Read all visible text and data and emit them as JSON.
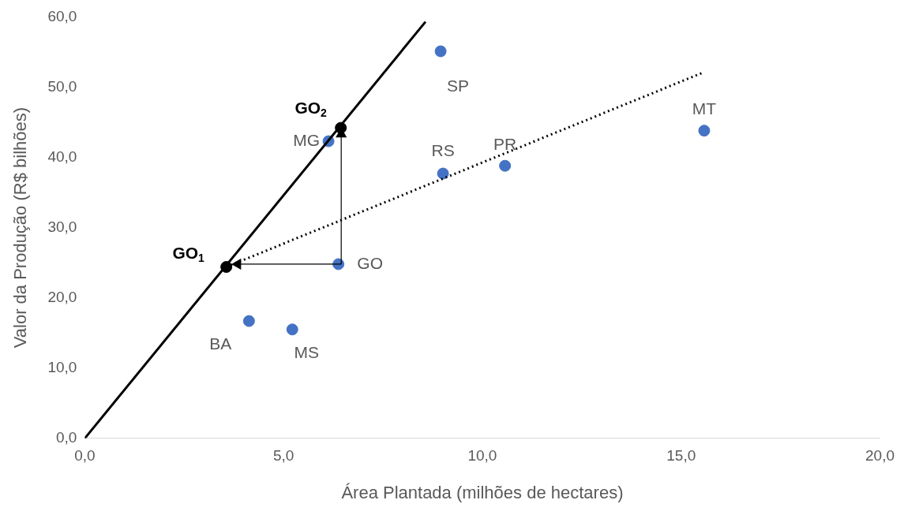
{
  "chart_data": {
    "type": "scatter",
    "xlabel": "Área Plantada (milhões de hectares)",
    "ylabel": "Valor da Produção (R$ bilhões)",
    "xlim": [
      0,
      20
    ],
    "xticks": [
      {
        "value": 0,
        "label": "0,0"
      },
      {
        "value": 5,
        "label": "5,0"
      },
      {
        "value": 10,
        "label": "10,0"
      },
      {
        "value": 15,
        "label": "15,0"
      },
      {
        "value": 20,
        "label": "20,0"
      }
    ],
    "ylim": [
      0,
      60
    ],
    "yticks": [
      {
        "value": 0,
        "label": "0,0"
      },
      {
        "value": 10,
        "label": "10,0"
      },
      {
        "value": 20,
        "label": "20,0"
      },
      {
        "value": 30,
        "label": "30,0"
      },
      {
        "value": 40,
        "label": "40,0"
      },
      {
        "value": 50,
        "label": "50,0"
      },
      {
        "value": 60,
        "label": "60,0"
      }
    ],
    "grid": false,
    "legend": false,
    "marker": "circle",
    "series": [
      {
        "type": "line",
        "color": "#000000",
        "line_style": "solid",
        "marker": "none",
        "x": [
          0,
          8.57
        ],
        "values": [
          0,
          59.3
        ]
      },
      {
        "type": "line",
        "color": "#000000",
        "line_style": "dotted",
        "marker": "none",
        "x": [
          3.56,
          15.52
        ],
        "values": [
          24.4,
          52.0
        ]
      },
      {
        "type": "line",
        "color": "#000000",
        "line_style": "solid",
        "marker": "triangle",
        "x": [
          6.45,
          6.45
        ],
        "values": [
          24.8,
          43.3
        ]
      },
      {
        "type": "line",
        "color": "#000000",
        "line_style": "solid",
        "marker": "triangle",
        "x": [
          6.45,
          3.85
        ],
        "values": [
          24.8,
          24.8
        ]
      },
      {
        "name": "SP",
        "color": "#4472c4",
        "x": [
          8.95
        ],
        "values": [
          55.1
        ]
      },
      {
        "name": "MT",
        "color": "#4472c4",
        "x": [
          15.58
        ],
        "values": [
          43.8
        ]
      },
      {
        "name": "PR",
        "color": "#4472c4",
        "x": [
          10.57
        ],
        "values": [
          38.8
        ]
      },
      {
        "name": "RS",
        "color": "#4472c4",
        "x": [
          9.01
        ],
        "values": [
          37.7
        ]
      },
      {
        "name": "MG",
        "color": "#4472c4",
        "x": [
          6.13
        ],
        "values": [
          42.3
        ]
      },
      {
        "name": "GO",
        "color": "#4472c4",
        "x": [
          6.38
        ],
        "values": [
          24.8
        ]
      },
      {
        "name": "BA",
        "color": "#4472c4",
        "x": [
          4.13
        ],
        "values": [
          16.7
        ]
      },
      {
        "name": "MS",
        "color": "#4472c4",
        "x": [
          5.22
        ],
        "values": [
          15.5
        ]
      },
      {
        "name": "GO$_{1}$",
        "color": "#000000",
        "x": [
          3.56
        ],
        "values": [
          24.4
        ]
      },
      {
        "name": "GO$_{2}$",
        "color": "#000000",
        "x": [
          6.44
        ],
        "values": [
          44.2
        ]
      }
    ]
  }
}
